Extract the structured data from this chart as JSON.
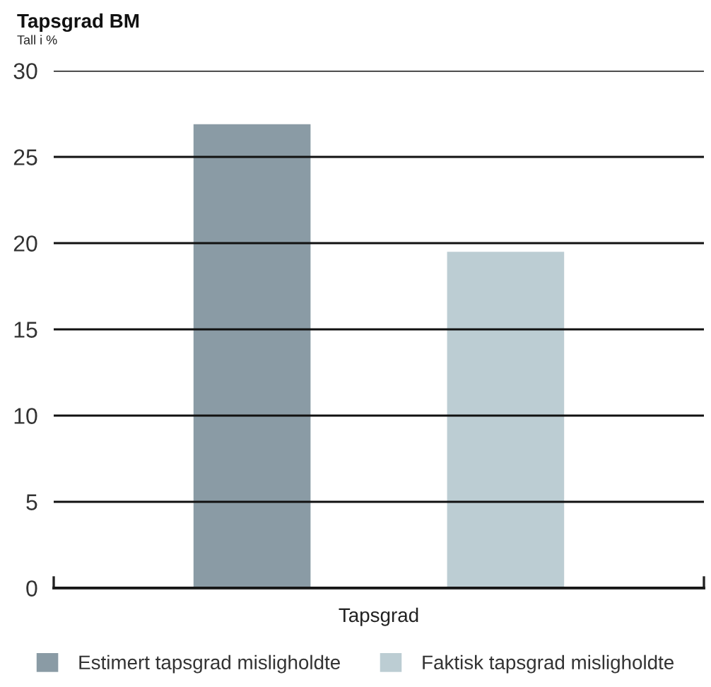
{
  "chart_data": {
    "type": "bar",
    "title": "Tapsgrad BM",
    "subtitle": "Tall i %",
    "categories": [
      "Tapsgrad"
    ],
    "series": [
      {
        "name": "Estimert tapsgrad misligholdte",
        "color": "#8a9ba5",
        "values": [
          26.9
        ]
      },
      {
        "name": "Faktisk tapsgrad misligholdte",
        "color": "#bccdd3",
        "values": [
          19.5
        ]
      }
    ],
    "ylim": [
      0,
      30
    ],
    "yticks": [
      0,
      5,
      10,
      15,
      20,
      25,
      30
    ],
    "grid": "y",
    "legend": "bottom"
  }
}
